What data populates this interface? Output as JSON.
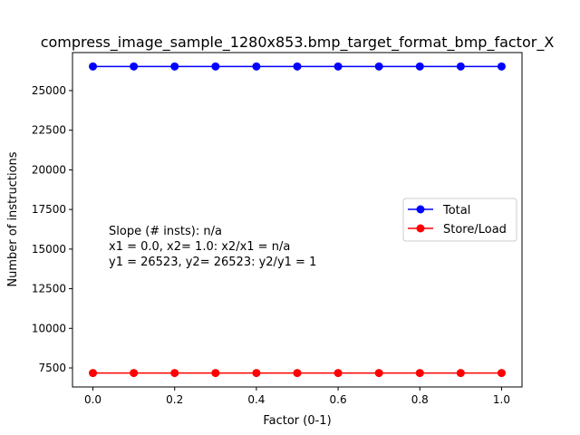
{
  "chart_data": {
    "type": "line",
    "title": "compress_image_sample_1280x853.bmp_target_format_bmp_factor_X",
    "xlabel": "Factor (0-1)",
    "ylabel": "Number of instructions",
    "xlim": [
      -0.05,
      1.05
    ],
    "ylim": [
      6300,
      27400
    ],
    "x_ticks": [
      0.0,
      0.2,
      0.4,
      0.6,
      0.8,
      1.0
    ],
    "x_tick_labels": [
      "0.0",
      "0.2",
      "0.4",
      "0.6",
      "0.8",
      "1.0"
    ],
    "y_ticks": [
      7500,
      10000,
      12500,
      15000,
      17500,
      20000,
      22500,
      25000
    ],
    "y_tick_labels": [
      "7500",
      "10000",
      "12500",
      "15000",
      "17500",
      "20000",
      "22500",
      "25000"
    ],
    "x": [
      0.0,
      0.1,
      0.2,
      0.3,
      0.4,
      0.5,
      0.6,
      0.7,
      0.8,
      0.9,
      1.0
    ],
    "series": [
      {
        "name": "Total",
        "color": "#0000ff",
        "values": [
          26523,
          26523,
          26523,
          26523,
          26523,
          26523,
          26523,
          26523,
          26523,
          26523,
          26523
        ]
      },
      {
        "name": "Store/Load",
        "color": "#ff0000",
        "values": [
          7180,
          7180,
          7180,
          7180,
          7180,
          7180,
          7180,
          7180,
          7180,
          7180,
          7180
        ]
      }
    ],
    "annotation": [
      "Slope (# insts): n/a",
      "x1 = 0.0, x2= 1.0: x2/x1 = n/a",
      "y1 = 26523, y2= 26523: y2/y1 = 1"
    ],
    "legend_position": "center-right",
    "grid": false
  }
}
